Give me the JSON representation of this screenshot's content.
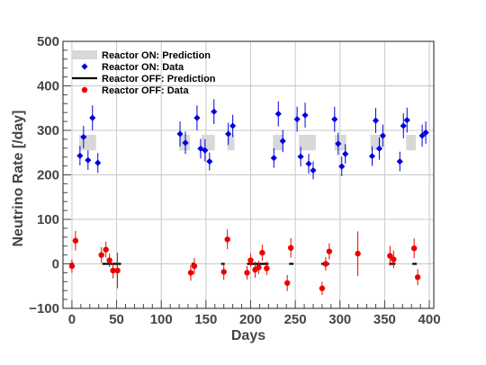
{
  "chart_data": {
    "type": "scatter",
    "title": "",
    "xlabel": "Days",
    "ylabel": "Neutrino Rate [/day]",
    "xlim": [
      -10,
      405
    ],
    "ylim": [
      -100,
      500
    ],
    "xticks": [
      0,
      50,
      100,
      150,
      200,
      250,
      300,
      350,
      400
    ],
    "yticks": [
      -100,
      0,
      100,
      200,
      300,
      400,
      500
    ],
    "grid": true,
    "legend_position": "top-left",
    "colors": {
      "on_data": "#0000dd",
      "off_data": "#ee0000",
      "on_band": "#d8d8d8",
      "off_line": "#000000",
      "grid": "#c8c8c8",
      "axis": "#444444"
    },
    "legend": [
      {
        "key": "on_prediction",
        "label": "Reactor ON: Prediction"
      },
      {
        "key": "on_data",
        "label": "Reactor ON: Data"
      },
      {
        "key": "off_prediction",
        "label": "Reactor OFF: Prediction"
      },
      {
        "key": "off_data",
        "label": "Reactor OFF: Data"
      }
    ],
    "series": [
      {
        "name": "Reactor ON: Prediction",
        "kind": "band",
        "segments": [
          {
            "x0": 8,
            "x1": 27,
            "y0": 255,
            "y1": 290
          },
          {
            "x0": 120,
            "x1": 132,
            "y0": 255,
            "y1": 290
          },
          {
            "x0": 145,
            "x1": 160,
            "y0": 255,
            "y1": 290
          },
          {
            "x0": 174,
            "x1": 182,
            "y0": 255,
            "y1": 290
          },
          {
            "x0": 225,
            "x1": 237,
            "y0": 255,
            "y1": 290
          },
          {
            "x0": 254,
            "x1": 273,
            "y0": 255,
            "y1": 290
          },
          {
            "x0": 294,
            "x1": 307,
            "y0": 255,
            "y1": 290
          },
          {
            "x0": 334,
            "x1": 347,
            "y0": 255,
            "y1": 290
          },
          {
            "x0": 374,
            "x1": 385,
            "y0": 255,
            "y1": 290
          }
        ]
      },
      {
        "name": "Reactor ON: Data",
        "kind": "points",
        "points": [
          {
            "x": 9,
            "y": 243,
            "err": 22
          },
          {
            "x": 13,
            "y": 285,
            "err": 25
          },
          {
            "x": 18,
            "y": 233,
            "err": 22
          },
          {
            "x": 23,
            "y": 328,
            "err": 28
          },
          {
            "x": 29,
            "y": 227,
            "err": 22
          },
          {
            "x": 121,
            "y": 292,
            "err": 28
          },
          {
            "x": 127,
            "y": 272,
            "err": 25
          },
          {
            "x": 140,
            "y": 328,
            "err": 28
          },
          {
            "x": 144,
            "y": 259,
            "err": 22
          },
          {
            "x": 149,
            "y": 255,
            "err": 25
          },
          {
            "x": 154,
            "y": 230,
            "err": 20
          },
          {
            "x": 159,
            "y": 342,
            "err": 28
          },
          {
            "x": 175,
            "y": 292,
            "err": 25
          },
          {
            "x": 180,
            "y": 310,
            "err": 25
          },
          {
            "x": 226,
            "y": 238,
            "err": 22
          },
          {
            "x": 231,
            "y": 337,
            "err": 28
          },
          {
            "x": 236,
            "y": 276,
            "err": 25
          },
          {
            "x": 252,
            "y": 325,
            "err": 28
          },
          {
            "x": 256,
            "y": 241,
            "err": 22
          },
          {
            "x": 261,
            "y": 334,
            "err": 28
          },
          {
            "x": 265,
            "y": 225,
            "err": 22
          },
          {
            "x": 270,
            "y": 210,
            "err": 20
          },
          {
            "x": 294,
            "y": 325,
            "err": 28
          },
          {
            "x": 298,
            "y": 270,
            "err": 25
          },
          {
            "x": 302,
            "y": 219,
            "err": 22
          },
          {
            "x": 306,
            "y": 247,
            "err": 22
          },
          {
            "x": 336,
            "y": 242,
            "err": 22
          },
          {
            "x": 340,
            "y": 322,
            "err": 28
          },
          {
            "x": 344,
            "y": 259,
            "err": 25
          },
          {
            "x": 348,
            "y": 288,
            "err": 25
          },
          {
            "x": 367,
            "y": 230,
            "err": 22
          },
          {
            "x": 371,
            "y": 310,
            "err": 28
          },
          {
            "x": 375,
            "y": 323,
            "err": 28
          },
          {
            "x": 392,
            "y": 288,
            "err": 25
          },
          {
            "x": 396,
            "y": 295,
            "err": 25
          }
        ]
      },
      {
        "name": "Reactor OFF: Prediction",
        "kind": "line_segments",
        "segments": [
          {
            "x0": -2,
            "x1": 2,
            "y": 0
          },
          {
            "x0": 34,
            "x1": 55,
            "y": 0
          },
          {
            "x0": 134,
            "x1": 138,
            "y": 0
          },
          {
            "x0": 167,
            "x1": 171,
            "y": 0
          },
          {
            "x0": 196,
            "x1": 220,
            "y": 0
          },
          {
            "x0": 243,
            "x1": 248,
            "y": 0
          },
          {
            "x0": 279,
            "x1": 288,
            "y": 0
          },
          {
            "x0": 355,
            "x1": 362,
            "y": 0
          },
          {
            "x0": 381,
            "x1": 386,
            "y": 0
          }
        ]
      },
      {
        "name": "Reactor OFF: Data",
        "kind": "points",
        "points": [
          {
            "x": 0,
            "y": -5,
            "err": 15
          },
          {
            "x": 4,
            "y": 52,
            "err": 22
          },
          {
            "x": 33,
            "y": 20,
            "err": 18
          },
          {
            "x": 38,
            "y": 32,
            "err": 18
          },
          {
            "x": 42,
            "y": 8,
            "err": 15
          },
          {
            "x": 46,
            "y": -15,
            "err": 18
          },
          {
            "x": 51,
            "y": -15,
            "err": 40
          },
          {
            "x": 133,
            "y": -20,
            "err": 18
          },
          {
            "x": 137,
            "y": -5,
            "err": 18
          },
          {
            "x": 170,
            "y": -18,
            "err": 18
          },
          {
            "x": 174,
            "y": 55,
            "err": 22
          },
          {
            "x": 196,
            "y": -20,
            "err": 15
          },
          {
            "x": 200,
            "y": 8,
            "err": 15
          },
          {
            "x": 205,
            "y": -13,
            "err": 18
          },
          {
            "x": 209,
            "y": -8,
            "err": 15
          },
          {
            "x": 213,
            "y": 25,
            "err": 18
          },
          {
            "x": 218,
            "y": -10,
            "err": 15
          },
          {
            "x": 241,
            "y": -43,
            "err": 18
          },
          {
            "x": 245,
            "y": 36,
            "err": 22
          },
          {
            "x": 280,
            "y": -55,
            "err": 15
          },
          {
            "x": 284,
            "y": 0,
            "err": 15
          },
          {
            "x": 288,
            "y": 28,
            "err": 18
          },
          {
            "x": 320,
            "y": 23,
            "err": 50
          },
          {
            "x": 356,
            "y": 18,
            "err": 22
          },
          {
            "x": 360,
            "y": 10,
            "err": 20
          },
          {
            "x": 383,
            "y": 35,
            "err": 22
          },
          {
            "x": 387,
            "y": -30,
            "err": 18
          }
        ]
      }
    ]
  }
}
